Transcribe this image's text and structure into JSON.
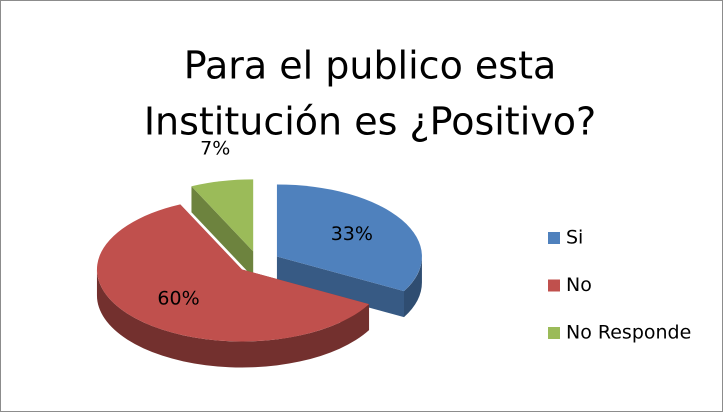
{
  "chart_data": {
    "type": "pie3d",
    "title": [
      "Para el publico esta",
      "Institución es ¿Positivo?"
    ],
    "categories": [
      "Si",
      "No",
      "No Responde"
    ],
    "values": [
      33,
      60,
      7
    ],
    "value_labels": [
      "33%",
      "60%",
      "7%"
    ],
    "colors": [
      "#4f81bd",
      "#c0504d",
      "#9bbb59"
    ],
    "legend": "right"
  }
}
